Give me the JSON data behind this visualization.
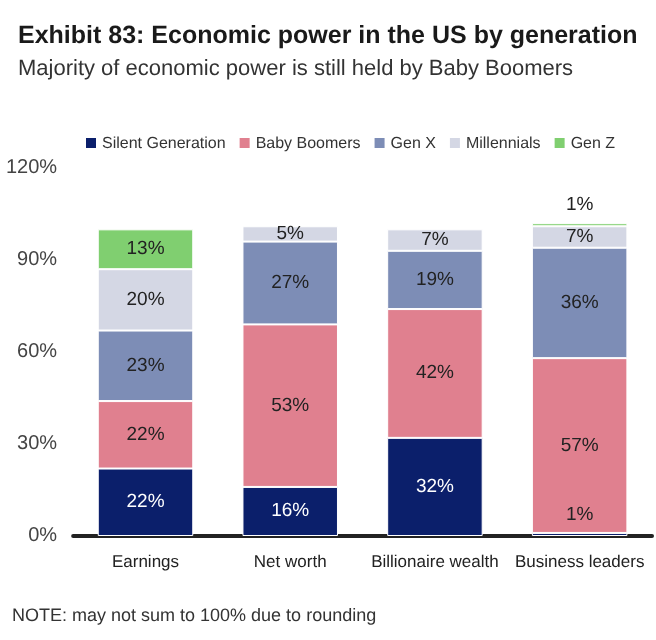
{
  "chart_data": {
    "type": "bar",
    "stacked": true,
    "title": "Exhibit 83: Economic power in the US by generation",
    "subtitle": "Majority of economic power is still held by Baby Boomers",
    "categories": [
      "Earnings",
      "Net worth",
      "Billionaire wealth",
      "Business leaders"
    ],
    "series": [
      {
        "name": "Silent Generation",
        "color": "#0b1f6b",
        "values": [
          22,
          16,
          32,
          1
        ],
        "value_labels": [
          "22%",
          "16%",
          "32%",
          "1%"
        ]
      },
      {
        "name": "Baby Boomers",
        "color": "#e0808f",
        "values": [
          22,
          53,
          42,
          57
        ],
        "value_labels": [
          "22%",
          "53%",
          "42%",
          "57%"
        ]
      },
      {
        "name": "Gen X",
        "color": "#7d8db6",
        "values": [
          23,
          27,
          19,
          36
        ],
        "value_labels": [
          "23%",
          "27%",
          "19%",
          "36%"
        ]
      },
      {
        "name": "Millennials",
        "color": "#d4d7e4",
        "values": [
          20,
          5,
          7,
          7
        ],
        "value_labels": [
          "20%",
          "5%",
          "7%",
          "7%"
        ]
      },
      {
        "name": "Gen Z",
        "color": "#80cf70",
        "values": [
          13,
          null,
          null,
          1
        ],
        "value_labels": [
          "13%",
          null,
          null,
          "1%"
        ]
      }
    ],
    "ylim": [
      0,
      120
    ],
    "yticks": [
      {
        "value": 0,
        "label": "0%"
      },
      {
        "value": 30,
        "label": "30%"
      },
      {
        "value": 60,
        "label": "60%"
      },
      {
        "value": 90,
        "label": "90%"
      },
      {
        "value": 120,
        "label": "120%"
      }
    ],
    "grid": false,
    "legend": "top",
    "annotations": [
      "NOTE: may not sum to 100% due to rounding"
    ]
  }
}
